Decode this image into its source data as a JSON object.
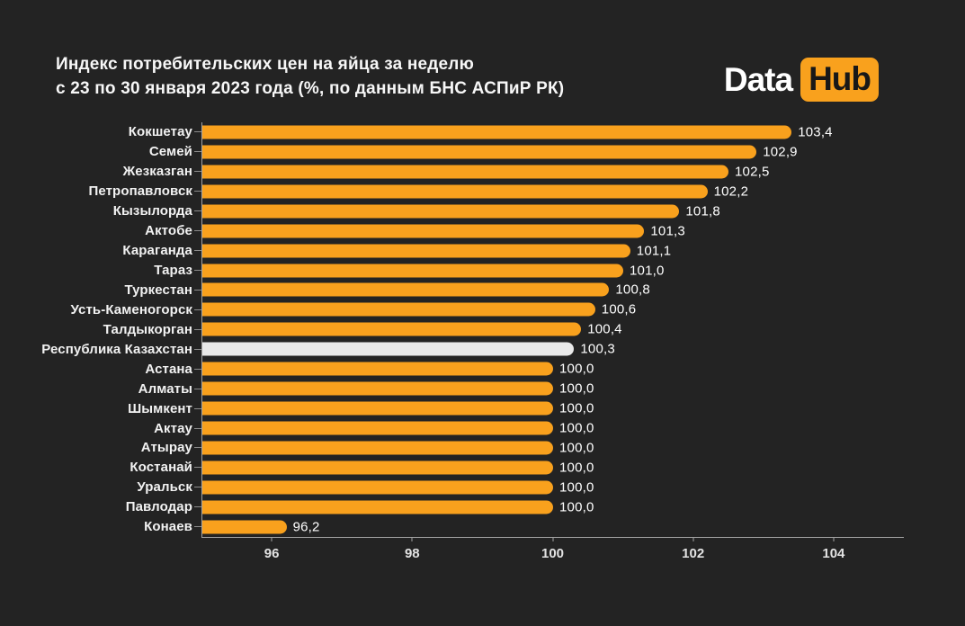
{
  "header": {
    "title_line1": "Индекс потребительских цен на яйца за неделю",
    "title_line2": "с 23 по 30 января 2023 года (%, по данным  БНС АСПиР РК)",
    "logo": {
      "part1": "Data",
      "part2": "Hub"
    }
  },
  "colors": {
    "background": "#232323",
    "bar": "#F9A11D",
    "highlight_bar": "#E9E9E9",
    "axis": "#A3A3A3",
    "text": "#FFFFFF",
    "tick_text": "#E3E3E3"
  },
  "chart_data": {
    "type": "bar",
    "orientation": "horizontal",
    "title": "Индекс потребительских цен на яйца за неделю с 23 по 30 января 2023 года (%, по данным БНС АСПиР РК)",
    "xlabel": "",
    "ylabel": "",
    "xlim": [
      95,
      105
    ],
    "x_ticks": [
      96,
      98,
      100,
      102,
      104
    ],
    "grid": false,
    "legend": false,
    "decimal_separator": ",",
    "highlight_category": "Республика Казахстан",
    "categories": [
      "Кокшетау",
      "Семей",
      "Жезказган",
      "Петропавловск",
      "Кызылорда",
      "Актобе",
      "Караганда",
      "Тараз",
      "Туркестан",
      "Усть-Каменогорск",
      "Талдыкорган",
      "Республика Казахстан",
      "Астана",
      "Алматы",
      "Шымкент",
      "Актау",
      "Атырау",
      "Костанай",
      "Уральск",
      "Павлодар",
      "Конаев"
    ],
    "values": [
      103.4,
      102.9,
      102.5,
      102.2,
      101.8,
      101.3,
      101.1,
      101.0,
      100.8,
      100.6,
      100.4,
      100.3,
      100.0,
      100.0,
      100.0,
      100.0,
      100.0,
      100.0,
      100.0,
      100.0,
      96.2
    ]
  }
}
